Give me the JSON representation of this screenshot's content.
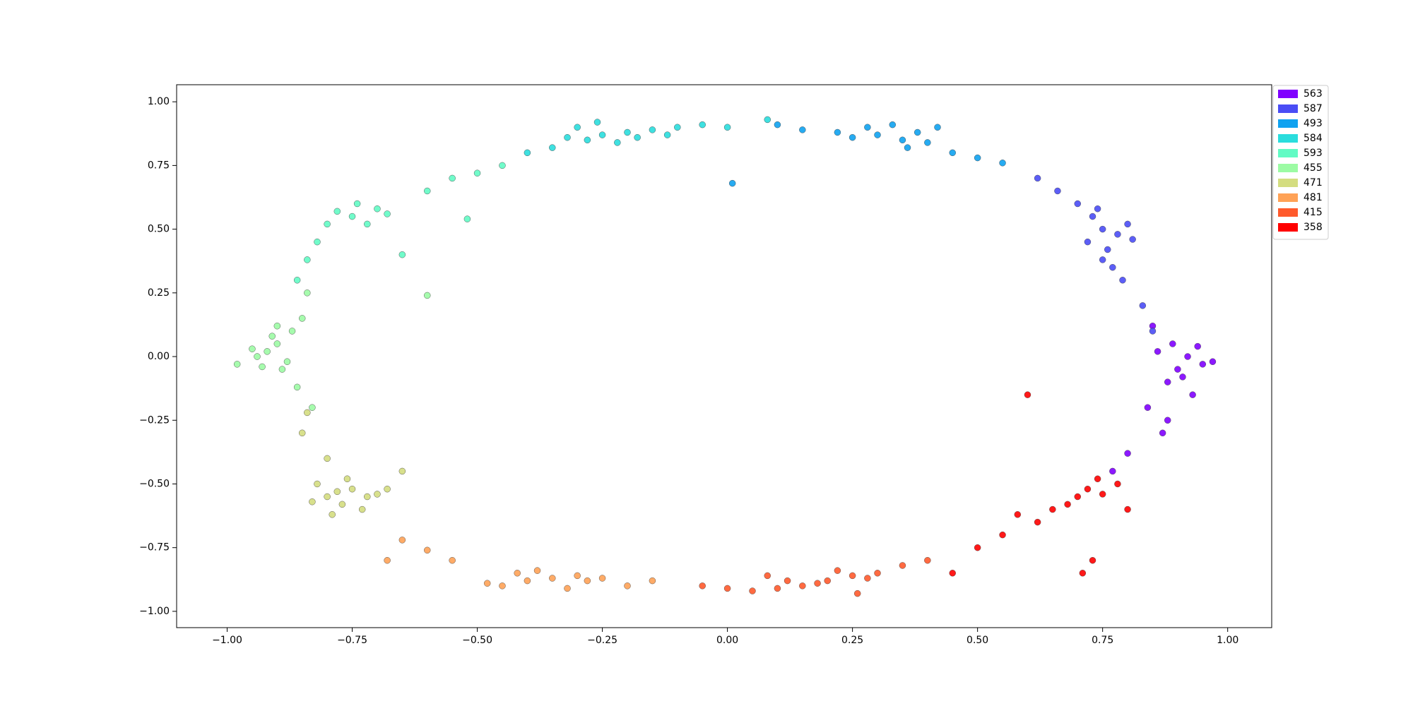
{
  "chart_data": {
    "type": "scatter",
    "xlim": [
      -1.101,
      1.088
    ],
    "ylim": [
      -1.064,
      1.067
    ],
    "xticks": [
      {
        "value": -1,
        "label": "−1.00"
      },
      {
        "value": -0.75,
        "label": "−0.75"
      },
      {
        "value": -0.5,
        "label": "−0.50"
      },
      {
        "value": -0.25,
        "label": "−0.25"
      },
      {
        "value": 0,
        "label": "0.00"
      },
      {
        "value": 0.25,
        "label": "0.25"
      },
      {
        "value": 0.5,
        "label": "0.50"
      },
      {
        "value": 0.75,
        "label": "0.75"
      },
      {
        "value": 1,
        "label": "1.00"
      }
    ],
    "yticks": [
      {
        "value": -1,
        "label": "−1.00"
      },
      {
        "value": -0.75,
        "label": "−0.75"
      },
      {
        "value": -0.5,
        "label": "−0.50"
      },
      {
        "value": -0.25,
        "label": "−0.25"
      },
      {
        "value": 0,
        "label": "0.00"
      },
      {
        "value": 0.25,
        "label": "0.25"
      },
      {
        "value": 0.5,
        "label": "0.50"
      },
      {
        "value": 0.75,
        "label": "0.75"
      },
      {
        "value": 1,
        "label": "1.00"
      }
    ],
    "legend": "upper right",
    "series": [
      {
        "name": "563",
        "color": "#8000ff",
        "x": [
          0.9,
          0.92,
          0.88,
          0.95,
          0.86,
          0.93,
          0.89,
          0.97,
          0.84,
          0.91,
          0.87,
          0.85,
          0.8,
          0.77,
          0.94,
          0.88
        ],
        "y": [
          -0.05,
          0.0,
          -0.1,
          -0.03,
          0.02,
          -0.15,
          0.05,
          -0.02,
          -0.2,
          -0.08,
          -0.3,
          0.12,
          -0.38,
          -0.45,
          0.04,
          -0.25
        ]
      },
      {
        "name": "587",
        "color": "#4a4df5",
        "x": [
          0.75,
          0.73,
          0.78,
          0.72,
          0.76,
          0.74,
          0.8,
          0.7,
          0.66,
          0.77,
          0.79,
          0.83,
          0.85,
          0.75,
          0.62,
          0.81
        ],
        "y": [
          0.5,
          0.55,
          0.48,
          0.45,
          0.42,
          0.58,
          0.52,
          0.6,
          0.65,
          0.35,
          0.3,
          0.2,
          0.1,
          0.38,
          0.7,
          0.46
        ]
      },
      {
        "name": "493",
        "color": "#10a2f0",
        "x": [
          0.3,
          0.35,
          0.28,
          0.38,
          0.25,
          0.33,
          0.4,
          0.22,
          0.45,
          0.5,
          0.55,
          0.15,
          0.1,
          0.36,
          0.42,
          0.01
        ],
        "y": [
          0.87,
          0.85,
          0.9,
          0.88,
          0.86,
          0.91,
          0.84,
          0.88,
          0.8,
          0.78,
          0.76,
          0.89,
          0.91,
          0.82,
          0.9,
          0.68
        ]
      },
      {
        "name": "584",
        "color": "#2adddd",
        "x": [
          -0.25,
          -0.28,
          -0.2,
          -0.3,
          -0.22,
          -0.15,
          -0.1,
          -0.32,
          -0.26,
          -0.05,
          0.0,
          -0.35,
          -0.4,
          -0.18,
          -0.12,
          0.08
        ],
        "y": [
          0.87,
          0.85,
          0.88,
          0.9,
          0.84,
          0.89,
          0.9,
          0.86,
          0.92,
          0.91,
          0.9,
          0.82,
          0.8,
          0.86,
          0.87,
          0.93
        ]
      },
      {
        "name": "593",
        "color": "#62fbc4",
        "x": [
          -0.75,
          -0.78,
          -0.72,
          -0.7,
          -0.8,
          -0.74,
          -0.68,
          -0.82,
          -0.84,
          -0.6,
          -0.55,
          -0.5,
          -0.45,
          -0.86,
          -0.65,
          -0.52
        ],
        "y": [
          0.55,
          0.57,
          0.52,
          0.58,
          0.52,
          0.6,
          0.56,
          0.45,
          0.38,
          0.65,
          0.7,
          0.72,
          0.75,
          0.3,
          0.4,
          0.54
        ]
      },
      {
        "name": "455",
        "color": "#9cfba4",
        "x": [
          -0.92,
          -0.9,
          -0.94,
          -0.88,
          -0.95,
          -0.91,
          -0.87,
          -0.89,
          -0.93,
          -0.85,
          -0.84,
          -0.98,
          -0.86,
          -0.6,
          -0.83,
          -0.9
        ],
        "y": [
          0.02,
          0.05,
          0.0,
          -0.02,
          0.03,
          0.08,
          0.1,
          -0.05,
          -0.04,
          0.15,
          0.25,
          -0.03,
          -0.12,
          0.24,
          -0.2,
          0.12
        ]
      },
      {
        "name": "471",
        "color": "#d4dd80",
        "x": [
          -0.78,
          -0.8,
          -0.75,
          -0.82,
          -0.72,
          -0.77,
          -0.7,
          -0.83,
          -0.76,
          -0.68,
          -0.65,
          -0.85,
          -0.8,
          -0.79,
          -0.73,
          -0.84
        ],
        "y": [
          -0.53,
          -0.55,
          -0.52,
          -0.5,
          -0.55,
          -0.58,
          -0.54,
          -0.57,
          -0.48,
          -0.52,
          -0.45,
          -0.3,
          -0.4,
          -0.62,
          -0.6,
          -0.22
        ]
      },
      {
        "name": "481",
        "color": "#ffa256",
        "x": [
          -0.35,
          -0.4,
          -0.3,
          -0.45,
          -0.38,
          -0.28,
          -0.42,
          -0.32,
          -0.48,
          -0.25,
          -0.55,
          -0.6,
          -0.65,
          -0.2,
          -0.15,
          -0.68
        ],
        "y": [
          -0.87,
          -0.88,
          -0.86,
          -0.9,
          -0.84,
          -0.88,
          -0.85,
          -0.91,
          -0.89,
          -0.87,
          -0.8,
          -0.76,
          -0.72,
          -0.9,
          -0.88,
          -0.8
        ]
      },
      {
        "name": "415",
        "color": "#ff5a2c",
        "x": [
          0.2,
          0.15,
          0.25,
          0.1,
          0.22,
          0.28,
          0.18,
          0.05,
          0.3,
          0.12,
          -0.05,
          0.0,
          0.35,
          0.4,
          0.26,
          0.08
        ],
        "y": [
          -0.88,
          -0.9,
          -0.86,
          -0.91,
          -0.84,
          -0.87,
          -0.89,
          -0.92,
          -0.85,
          -0.88,
          -0.9,
          -0.91,
          -0.82,
          -0.8,
          -0.93,
          -0.86
        ]
      },
      {
        "name": "358",
        "color": "#ff0000",
        "x": [
          0.7,
          0.72,
          0.68,
          0.75,
          0.65,
          0.73,
          0.62,
          0.55,
          0.5,
          0.45,
          0.78,
          0.71,
          0.74,
          0.58,
          0.8,
          0.6
        ],
        "y": [
          -0.55,
          -0.52,
          -0.58,
          -0.54,
          -0.6,
          -0.8,
          -0.65,
          -0.7,
          -0.75,
          -0.85,
          -0.5,
          -0.85,
          -0.48,
          -0.62,
          -0.6,
          -0.15
        ]
      }
    ]
  }
}
